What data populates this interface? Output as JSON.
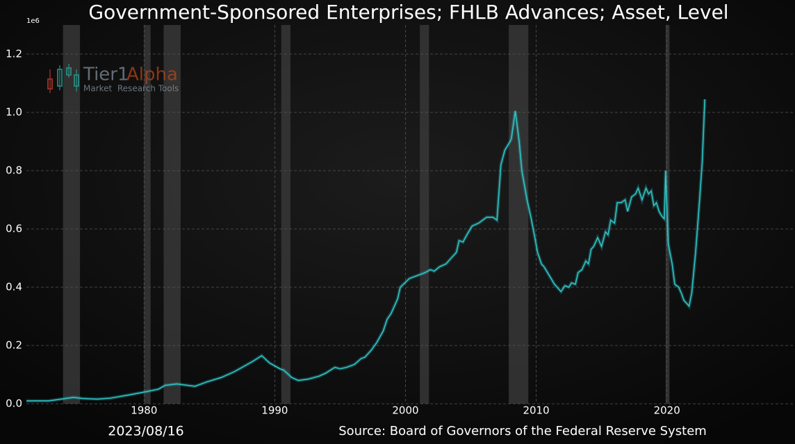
{
  "chart_data": {
    "type": "line",
    "title": "Government-Sponsored Enterprises; FHLB Advances; Asset, Level",
    "y_offset_label": "1e6",
    "date": "2023/08/16",
    "source": "Source: Board of Governors of the Federal Reserve System",
    "watermark": {
      "name": "Tier1",
      "name2": "Alpha",
      "tagline": "Market  Research Tools"
    },
    "x": [
      1971,
      1972.7,
      1974,
      1974.6,
      1975.3,
      1976.4,
      1977.4,
      1978.8,
      1980,
      1981.1,
      1981.6,
      1982.5,
      1983.9,
      1984.8,
      1985.9,
      1986.9,
      1987.7,
      1988.3,
      1989,
      1989.6,
      1990.4,
      1990.7,
      1991.3,
      1991.8,
      1992.6,
      1993.4,
      1993.9,
      1994.6,
      1995,
      1995.5,
      1996.1,
      1996.6,
      1996.9,
      1997.4,
      1997.8,
      1998.3,
      1998.6,
      1998.9,
      1999.4,
      1999.6,
      2000.3,
      2000.9,
      2001.5,
      2001.9,
      2002.2,
      2002.6,
      2003.1,
      2003.5,
      2003.9,
      2004.1,
      2004.4,
      2004.7,
      2005.1,
      2005.6,
      2006.2,
      2006.7,
      2007,
      2007.3,
      2007.6,
      2008,
      2008.1,
      2008.4,
      2008.7,
      2008.9,
      2009.3,
      2009.6,
      2009.9,
      2010.1,
      2010.4,
      2010.6,
      2011,
      2011.4,
      2011.6,
      2011.9,
      2012.2,
      2012.5,
      2012.7,
      2013,
      2013.2,
      2013.5,
      2013.8,
      2014,
      2014.2,
      2014.4,
      2014.7,
      2015,
      2015.3,
      2015.5,
      2015.7,
      2016,
      2016.2,
      2016.5,
      2016.8,
      2017,
      2017.3,
      2017.6,
      2017.8,
      2018.1,
      2018.4,
      2018.6,
      2018.8,
      2019,
      2019.2,
      2019.4,
      2019.6,
      2019.8,
      2019.9,
      2020.1,
      2020.4,
      2020.6,
      2020.9,
      2021.1,
      2021.3,
      2021.6,
      2021.7,
      2021.9,
      2022.2,
      2022.5,
      2022.7,
      2022.9
    ],
    "series": [
      {
        "name": "FHLB Advances",
        "color": "#2ec4c6",
        "values": [
          0.01,
          0.01,
          0.018,
          0.022,
          0.018,
          0.016,
          0.019,
          0.03,
          0.04,
          0.05,
          0.063,
          0.068,
          0.06,
          0.075,
          0.09,
          0.11,
          0.13,
          0.145,
          0.165,
          0.14,
          0.12,
          0.115,
          0.09,
          0.08,
          0.085,
          0.095,
          0.105,
          0.125,
          0.12,
          0.125,
          0.135,
          0.155,
          0.16,
          0.185,
          0.21,
          0.25,
          0.29,
          0.31,
          0.36,
          0.4,
          0.43,
          0.44,
          0.45,
          0.46,
          0.455,
          0.47,
          0.48,
          0.5,
          0.52,
          0.56,
          0.555,
          0.58,
          0.61,
          0.62,
          0.64,
          0.64,
          0.63,
          0.82,
          0.87,
          0.9,
          0.91,
          1.005,
          0.9,
          0.8,
          0.7,
          0.64,
          0.57,
          0.52,
          0.48,
          0.47,
          0.44,
          0.41,
          0.4,
          0.385,
          0.405,
          0.4,
          0.415,
          0.41,
          0.45,
          0.46,
          0.49,
          0.48,
          0.53,
          0.54,
          0.57,
          0.54,
          0.59,
          0.58,
          0.63,
          0.62,
          0.69,
          0.69,
          0.7,
          0.66,
          0.71,
          0.72,
          0.74,
          0.7,
          0.74,
          0.72,
          0.73,
          0.68,
          0.69,
          0.66,
          0.645,
          0.635,
          0.8,
          0.55,
          0.48,
          0.41,
          0.4,
          0.38,
          0.355,
          0.34,
          0.335,
          0.38,
          0.52,
          0.7,
          0.83,
          1.045
        ]
      }
    ],
    "shaded_spans": [
      [
        1973.8,
        1975.1
      ],
      [
        1980,
        1980.5
      ],
      [
        1981.5,
        1982.8
      ],
      [
        1990.5,
        1991.2
      ],
      [
        2001.1,
        2001.8
      ],
      [
        2007.9,
        2009.4
      ],
      [
        2019.9,
        2020.2
      ]
    ],
    "xlim": [
      1971,
      2029.8
    ],
    "ylim": [
      0,
      1.3
    ],
    "xticks": [
      1980,
      1990,
      2000,
      2010,
      2020
    ],
    "yticks": [
      {
        "value": 0,
        "label": "0.0"
      },
      0.2,
      0.4,
      0.6,
      0.8,
      {
        "value": 1,
        "label": "1.0"
      },
      1.2
    ],
    "grid": true
  }
}
